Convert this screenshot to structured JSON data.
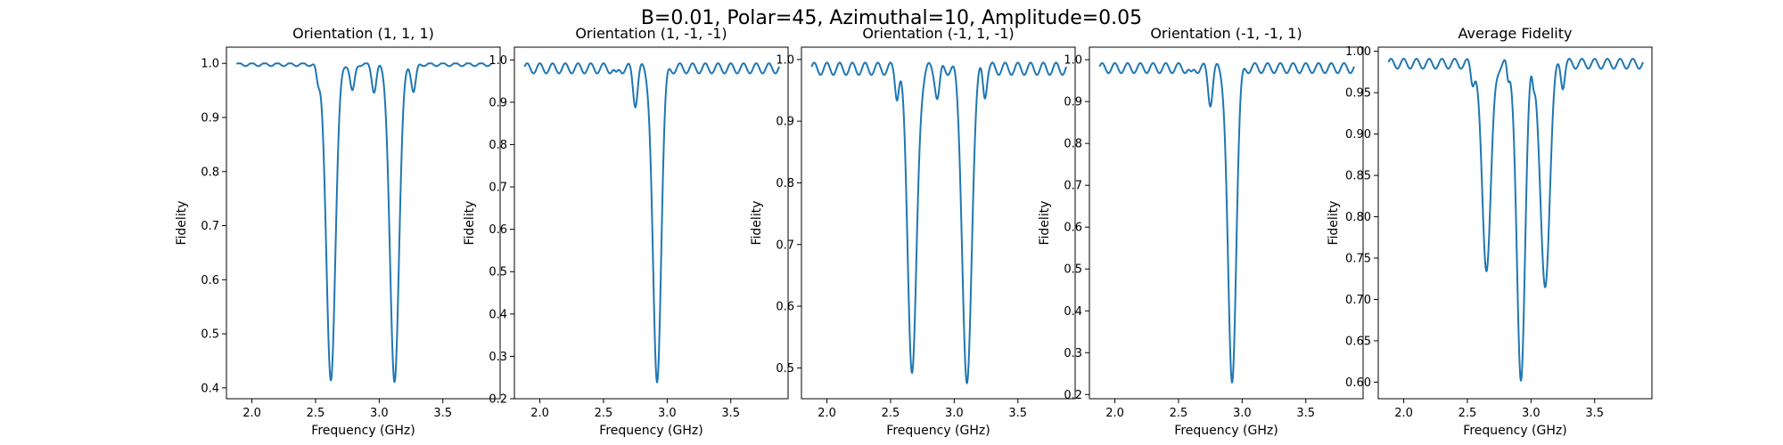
{
  "figure": {
    "suptitle": "B=0.01, Polar=45, Azimuthal=10, Amplitude=0.05",
    "line_color": "#1f77b4"
  },
  "chart_data": [
    {
      "type": "line",
      "title": "Orientation (1, 1, 1)",
      "xlabel": "Frequency (GHz)",
      "ylabel": "Fidelity",
      "xlim": [
        1.8,
        3.95
      ],
      "ylim": [
        0.38,
        1.03
      ],
      "xticks": [
        2.0,
        2.5,
        3.0,
        3.5
      ],
      "xtick_labels": [
        "2.0",
        "2.5",
        "3.0",
        "3.5"
      ],
      "yticks": [
        0.4,
        0.5,
        0.6,
        0.7,
        0.8,
        0.9,
        1.0
      ],
      "ytick_labels": [
        "0.4",
        "0.5",
        "0.6",
        "0.7",
        "0.8",
        "0.9",
        "1.0"
      ],
      "baseline": 0.998,
      "ripple": 0.003,
      "ripple_period": 0.1,
      "dips": [
        {
          "center": 2.62,
          "width": 0.05,
          "depth": 0.585
        },
        {
          "center": 3.12,
          "width": 0.05,
          "depth": 0.588
        },
        {
          "center": 2.52,
          "width": 0.02,
          "depth": 0.03
        },
        {
          "center": 2.79,
          "width": 0.025,
          "depth": 0.05
        },
        {
          "center": 2.96,
          "width": 0.025,
          "depth": 0.05
        },
        {
          "center": 3.27,
          "width": 0.025,
          "depth": 0.05
        }
      ]
    },
    {
      "type": "line",
      "title": "Orientation (1, -1, -1)",
      "xlabel": "Frequency (GHz)",
      "ylabel": "Fidelity",
      "xlim": [
        1.8,
        3.95
      ],
      "ylim": [
        0.2,
        1.03
      ],
      "xticks": [
        2.0,
        2.5,
        3.0,
        3.5
      ],
      "xtick_labels": [
        "2.0",
        "2.5",
        "3.0",
        "3.5"
      ],
      "yticks": [
        0.2,
        0.3,
        0.4,
        0.5,
        0.6,
        0.7,
        0.8,
        0.9,
        1.0
      ],
      "ytick_labels": [
        "0.2",
        "0.3",
        "0.4",
        "0.5",
        "0.6",
        "0.7",
        "0.8",
        "0.9",
        "1.0"
      ],
      "baseline": 0.98,
      "ripple": 0.012,
      "ripple_period": 0.1,
      "dips": [
        {
          "center": 2.92,
          "width": 0.045,
          "depth": 0.745
        },
        {
          "center": 2.75,
          "width": 0.025,
          "depth": 0.08
        },
        {
          "center": 2.6,
          "width": 0.02,
          "depth": 0.02
        }
      ]
    },
    {
      "type": "line",
      "title": "Orientation (-1, 1, -1)",
      "xlabel": "Frequency (GHz)",
      "ylabel": "Fidelity",
      "xlim": [
        1.8,
        3.95
      ],
      "ylim": [
        0.45,
        1.02
      ],
      "xticks": [
        2.0,
        2.5,
        3.0,
        3.5
      ],
      "xtick_labels": [
        "2.0",
        "2.5",
        "3.0",
        "3.5"
      ],
      "yticks": [
        0.5,
        0.6,
        0.7,
        0.8,
        0.9,
        1.0
      ],
      "ytick_labels": [
        "0.5",
        "0.6",
        "0.7",
        "0.8",
        "0.9",
        "1.0"
      ],
      "baseline": 0.985,
      "ripple": 0.01,
      "ripple_period": 0.1,
      "dips": [
        {
          "center": 2.67,
          "width": 0.05,
          "depth": 0.49
        },
        {
          "center": 3.1,
          "width": 0.05,
          "depth": 0.52
        },
        {
          "center": 2.55,
          "width": 0.02,
          "depth": 0.04
        },
        {
          "center": 2.87,
          "width": 0.025,
          "depth": 0.045
        },
        {
          "center": 3.24,
          "width": 0.02,
          "depth": 0.04
        }
      ]
    },
    {
      "type": "line",
      "title": "Orientation (-1, -1, 1)",
      "xlabel": "Frequency (GHz)",
      "ylabel": "Fidelity",
      "xlim": [
        1.8,
        3.95
      ],
      "ylim": [
        0.19,
        1.03
      ],
      "xticks": [
        2.0,
        2.5,
        3.0,
        3.5
      ],
      "xtick_labels": [
        "2.0",
        "2.5",
        "3.0",
        "3.5"
      ],
      "yticks": [
        0.2,
        0.3,
        0.4,
        0.5,
        0.6,
        0.7,
        0.8,
        0.9,
        1.0
      ],
      "ytick_labels": [
        "0.2",
        "0.3",
        "0.4",
        "0.5",
        "0.6",
        "0.7",
        "0.8",
        "0.9",
        "1.0"
      ],
      "baseline": 0.98,
      "ripple": 0.012,
      "ripple_period": 0.1,
      "dips": [
        {
          "center": 2.92,
          "width": 0.045,
          "depth": 0.755
        },
        {
          "center": 2.75,
          "width": 0.025,
          "depth": 0.08
        },
        {
          "center": 2.6,
          "width": 0.02,
          "depth": 0.02
        }
      ]
    },
    {
      "type": "line",
      "title": "Average Fidelity",
      "xlabel": "Frequency (GHz)",
      "ylabel": "Fidelity",
      "xlim": [
        1.8,
        3.95
      ],
      "ylim": [
        0.58,
        1.005
      ],
      "xticks": [
        2.0,
        2.5,
        3.0,
        3.5
      ],
      "xtick_labels": [
        "2.0",
        "2.5",
        "3.0",
        "3.5"
      ],
      "yticks": [
        0.6,
        0.65,
        0.7,
        0.75,
        0.8,
        0.85,
        0.9,
        0.95,
        1.0
      ],
      "ytick_labels": [
        "0.60",
        "0.65",
        "0.70",
        "0.75",
        "0.80",
        "0.85",
        "0.90",
        "0.95",
        "1.00"
      ],
      "baseline": 0.985,
      "ripple": 0.006,
      "ripple_period": 0.1,
      "dips": [
        {
          "center": 2.92,
          "width": 0.045,
          "depth": 0.385
        },
        {
          "center": 2.65,
          "width": 0.05,
          "depth": 0.245
        },
        {
          "center": 3.11,
          "width": 0.05,
          "depth": 0.275
        },
        {
          "center": 2.54,
          "width": 0.02,
          "depth": 0.02
        },
        {
          "center": 2.82,
          "width": 0.015,
          "depth": 0.02
        },
        {
          "center": 3.02,
          "width": 0.015,
          "depth": 0.02
        },
        {
          "center": 3.25,
          "width": 0.02,
          "depth": 0.025
        }
      ]
    }
  ]
}
